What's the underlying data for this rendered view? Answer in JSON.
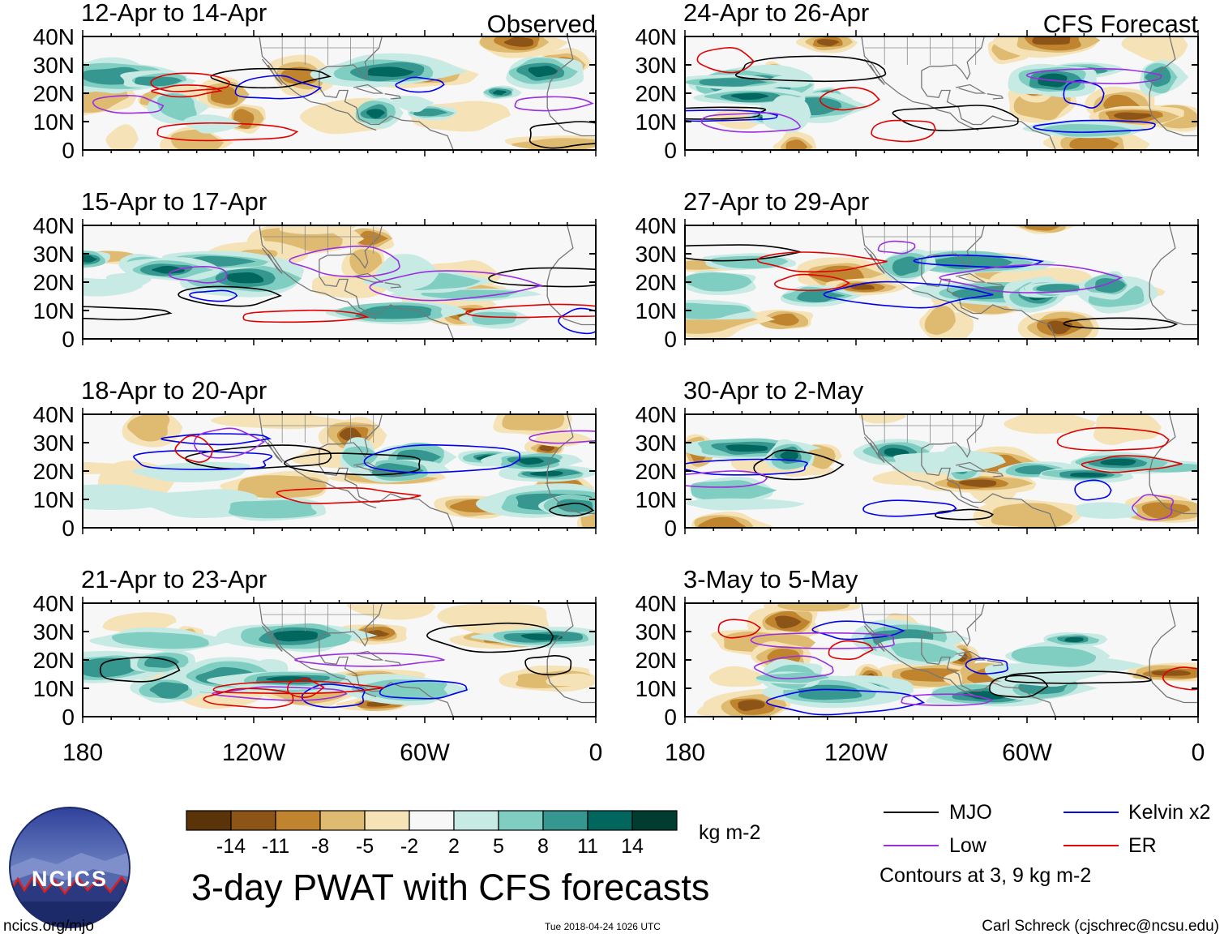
{
  "panels": [
    {
      "title": "12-Apr to 14-Apr",
      "corner": "Observed",
      "column": "left",
      "row": 0,
      "seed": 3
    },
    {
      "title": "15-Apr to 17-Apr",
      "corner": "",
      "column": "left",
      "row": 1,
      "seed": 7
    },
    {
      "title": "18-Apr to 20-Apr",
      "corner": "",
      "column": "left",
      "row": 2,
      "seed": 11
    },
    {
      "title": "21-Apr to 23-Apr",
      "corner": "",
      "column": "left",
      "row": 3,
      "seed": 13
    },
    {
      "title": "24-Apr to 26-Apr",
      "corner": "CFS Forecast",
      "column": "right",
      "row": 0,
      "seed": 17
    },
    {
      "title": "27-Apr to 29-Apr",
      "corner": "",
      "column": "right",
      "row": 1,
      "seed": 19
    },
    {
      "title": "30-Apr to 2-May",
      "corner": "",
      "column": "right",
      "row": 2,
      "seed": 23
    },
    {
      "title": "3-May to 5-May",
      "corner": "",
      "column": "right",
      "row": 3,
      "seed": 29
    }
  ],
  "y_tick_labels": [
    "40N",
    "30N",
    "20N",
    "10N",
    "0"
  ],
  "x_tick_labels": [
    "180",
    "120W",
    "60W",
    "0"
  ],
  "colorbar": {
    "colors": [
      "#5a3408",
      "#8c5417",
      "#c0832e",
      "#dfbb72",
      "#f5e3b7",
      "#f7f7f7",
      "#c7eae5",
      "#80cdc1",
      "#35978f",
      "#01665e",
      "#003c30"
    ],
    "tick_labels": [
      "-14",
      "-11",
      "-8",
      "-5",
      "-2",
      "2",
      "5",
      "8",
      "11",
      "14"
    ],
    "units": "kg m-2"
  },
  "title": "3-day PWAT with CFS forecasts",
  "legend": {
    "items": [
      {
        "label": "MJO",
        "color": "#000000"
      },
      {
        "label": "Kelvin x2",
        "color": "#0000ee"
      },
      {
        "label": "Low",
        "color": "#9a2ee0"
      },
      {
        "label": "ER",
        "color": "#e00000"
      }
    ],
    "note": "Contours at 3, 9 kg m-2"
  },
  "logo": {
    "text": "NCICS"
  },
  "footer": {
    "left": "ncics.org/mjo",
    "center": "Tue 2018-04-24 1026 UTC",
    "right": "Carl Schreck (cjschrec@ncsu.edu)"
  }
}
